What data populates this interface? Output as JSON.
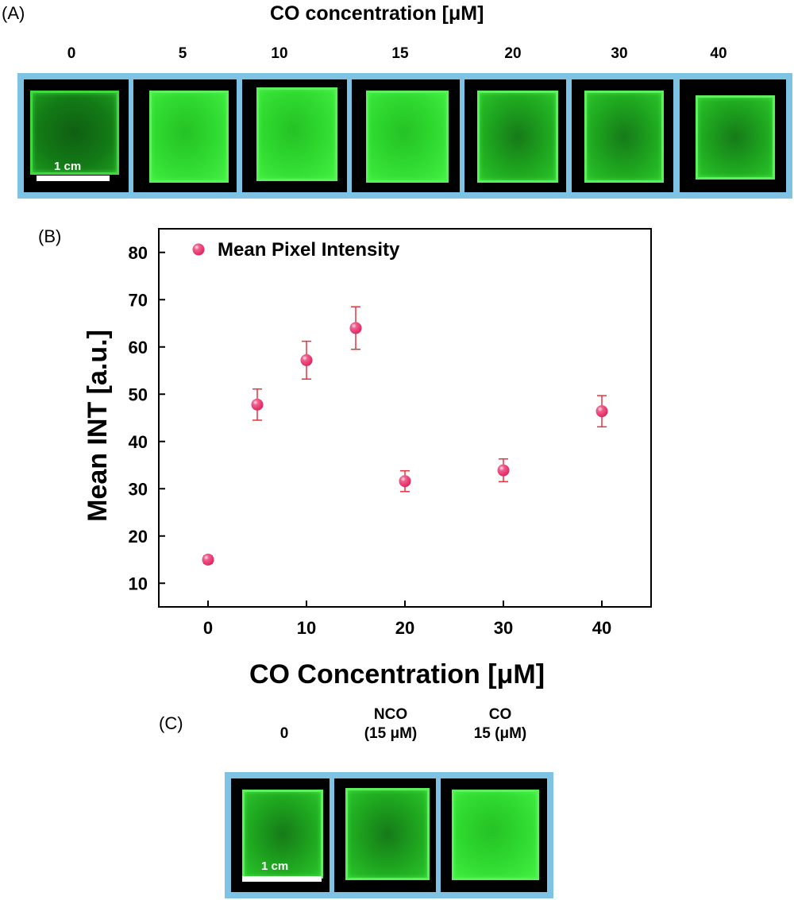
{
  "panel_a": {
    "letter": "(A)",
    "title": "CO concentration [μM]",
    "concentrations": [
      "0",
      "5",
      "10",
      "15",
      "20",
      "30",
      "40"
    ],
    "scale_label": "1 cm"
  },
  "panel_b": {
    "letter": "(B)"
  },
  "panel_c": {
    "letter": "(C)",
    "labels": [
      {
        "line1": "0",
        "line2": ""
      },
      {
        "line1": "NCO",
        "line2": "(15 μM)"
      },
      {
        "line1": "CO",
        "line2": "15 (μM)"
      }
    ],
    "scale_label": "1 cm"
  },
  "chart_data": {
    "type": "scatter",
    "title": "",
    "xlabel": "CO Concentration  [μM]",
    "ylabel": "Mean INT  [a.u.]",
    "xlim": [
      -5,
      45
    ],
    "ylim": [
      5,
      85
    ],
    "xticks": [
      0,
      10,
      20,
      30,
      40
    ],
    "yticks": [
      10,
      20,
      30,
      40,
      50,
      60,
      70,
      80
    ],
    "grid": false,
    "legend_position": "top-left",
    "marker_color": "#e0245e",
    "errorbar_color": "#e8323c",
    "series": [
      {
        "name": "Mean Pixel Intensity",
        "x": [
          0,
          5,
          10,
          15,
          20,
          30,
          40
        ],
        "y": [
          15,
          47.8,
          57.2,
          64,
          31.6,
          33.9,
          46.4
        ],
        "err": [
          0.8,
          3.3,
          4.0,
          4.5,
          2.2,
          2.4,
          3.3
        ]
      }
    ]
  }
}
